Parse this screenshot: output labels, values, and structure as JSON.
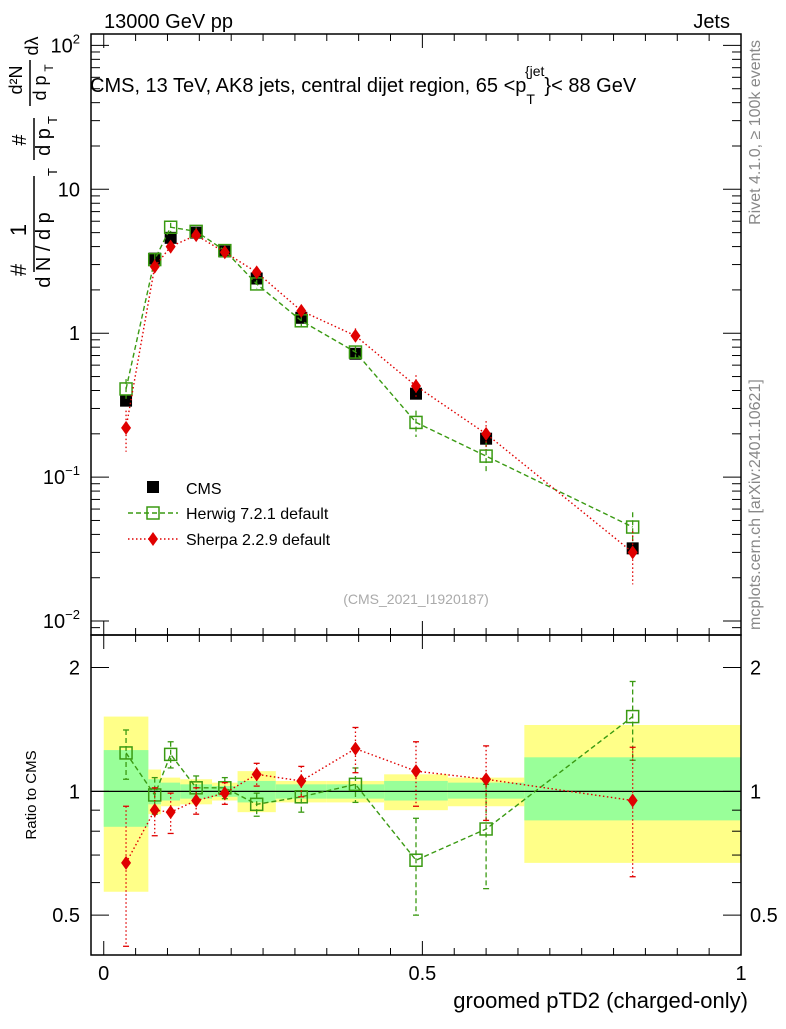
{
  "header": {
    "left": "13000 GeV pp",
    "right": "Jets"
  },
  "side_labels": {
    "rivet": "Rivet 4.1.0, ≥ 100k events",
    "mcplots": "mcplots.cern.ch [arXiv:2401.10621]"
  },
  "chart_data": {
    "type": "scatter",
    "title": "CMS, 13 TeV, AK8 jets, central dijet region, 65 <p_T^{jet}< 88 GeV",
    "title_parts": {
      "main": "CMS, 13 TeV, AK8 jets, central dijet region, 65 <p",
      "sub": "T",
      "sup": "{jet",
      "tail": "}< 88 GeV"
    },
    "ylabel_parts": {
      "num1": "#",
      "num2": "1",
      "den1": "d N / d p",
      "denT": "T",
      "frac2_num": "#",
      "frac2_den": "d p",
      "frac2_T": "T",
      "frac3_num": "d²N",
      "frac3_den": "d p",
      "frac3_T": "T",
      "dlambda": "dλ"
    },
    "xlabel": "groomed pTD2 (charged-only)",
    "ratio_ylabel": "Ratio to CMS",
    "analysis_label": "(CMS_2021_I1920187)",
    "xlim": [
      -0.02,
      1.0
    ],
    "ylim": [
      0.008,
      120
    ],
    "ratio_ylim": [
      0.4,
      2.4
    ],
    "xticks": [
      {
        "v": 0,
        "label": "0"
      },
      {
        "v": 0.5,
        "label": "0.5"
      },
      {
        "v": 1,
        "label": "1"
      }
    ],
    "yticks": [
      {
        "v": 0.01,
        "base": "10",
        "exp": "−2"
      },
      {
        "v": 0.1,
        "base": "10",
        "exp": "−1"
      },
      {
        "v": 1,
        "base": "1",
        "exp": ""
      },
      {
        "v": 10,
        "base": "10",
        "exp": ""
      },
      {
        "v": 100,
        "base": "10",
        "exp": "2"
      }
    ],
    "ratio_yticks": [
      {
        "v": 0.5,
        "label": "0.5"
      },
      {
        "v": 1,
        "label": "1"
      },
      {
        "v": 2,
        "label": "2"
      }
    ],
    "bins": [
      {
        "lo": 0.0,
        "hi": 0.07
      },
      {
        "lo": 0.07,
        "hi": 0.09
      },
      {
        "lo": 0.09,
        "hi": 0.12
      },
      {
        "lo": 0.12,
        "hi": 0.17
      },
      {
        "lo": 0.17,
        "hi": 0.21
      },
      {
        "lo": 0.21,
        "hi": 0.27
      },
      {
        "lo": 0.27,
        "hi": 0.35
      },
      {
        "lo": 0.35,
        "hi": 0.44
      },
      {
        "lo": 0.44,
        "hi": 0.54
      },
      {
        "lo": 0.54,
        "hi": 0.66
      },
      {
        "lo": 0.66,
        "hi": 1.0
      }
    ],
    "band_inner": [
      [
        0.82,
        1.26
      ],
      [
        0.93,
        1.07
      ],
      [
        0.95,
        1.05
      ],
      [
        0.96,
        1.04
      ],
      [
        0.97,
        1.03
      ],
      [
        0.94,
        1.06
      ],
      [
        0.96,
        1.04
      ],
      [
        0.96,
        1.04
      ],
      [
        0.95,
        1.06
      ],
      [
        0.96,
        1.05
      ],
      [
        0.85,
        1.21
      ]
    ],
    "band_outer": [
      [
        0.57,
        1.52
      ],
      [
        0.88,
        1.13
      ],
      [
        0.92,
        1.08
      ],
      [
        0.93,
        1.07
      ],
      [
        0.95,
        1.05
      ],
      [
        0.89,
        1.12
      ],
      [
        0.94,
        1.06
      ],
      [
        0.94,
        1.06
      ],
      [
        0.9,
        1.1
      ],
      [
        0.92,
        1.08
      ],
      [
        0.67,
        1.45
      ]
    ],
    "series": [
      {
        "name": "CMS",
        "color": "#000000",
        "marker": "square",
        "x": [
          0.035,
          0.08,
          0.105,
          0.145,
          0.19,
          0.24,
          0.31,
          0.395,
          0.49,
          0.6,
          0.83
        ],
        "y": [
          0.34,
          3.3,
          4.6,
          5.0,
          3.7,
          2.4,
          1.28,
          0.72,
          0.38,
          0.185,
          0.032
        ]
      },
      {
        "name": "Herwig 7.2.1 default",
        "color": "#3a9a12",
        "marker": "open-square",
        "line": "dashed",
        "x": [
          0.035,
          0.08,
          0.105,
          0.145,
          0.19,
          0.24,
          0.31,
          0.395,
          0.49,
          0.6,
          0.83
        ],
        "y": [
          0.41,
          3.25,
          5.45,
          5.1,
          3.75,
          2.2,
          1.22,
          0.74,
          0.24,
          0.14,
          0.045
        ],
        "yerr_lo": [
          0.06,
          0.3,
          0.4,
          0.35,
          0.2,
          0.15,
          0.1,
          0.07,
          0.05,
          0.035,
          0.01
        ],
        "yerr_hi": [
          0.07,
          0.3,
          0.4,
          0.35,
          0.2,
          0.15,
          0.1,
          0.07,
          0.05,
          0.035,
          0.012
        ],
        "ratio": [
          1.24,
          0.98,
          1.23,
          1.02,
          1.02,
          0.93,
          0.97,
          1.04,
          0.68,
          0.81,
          1.52
        ],
        "ratio_err": [
          0.17,
          0.1,
          0.09,
          0.07,
          0.06,
          0.06,
          0.08,
          0.1,
          0.18,
          0.23,
          0.33
        ]
      },
      {
        "name": "Sherpa 2.2.9 default",
        "color": "#e00000",
        "marker": "diamond",
        "line": "dotted",
        "x": [
          0.035,
          0.08,
          0.105,
          0.145,
          0.19,
          0.24,
          0.31,
          0.395,
          0.49,
          0.6,
          0.83
        ],
        "y": [
          0.22,
          2.9,
          4.0,
          4.8,
          3.65,
          2.65,
          1.43,
          0.96,
          0.43,
          0.2,
          0.03
        ],
        "yerr_lo": [
          0.07,
          0.35,
          0.4,
          0.35,
          0.22,
          0.18,
          0.12,
          0.12,
          0.08,
          0.045,
          0.012
        ],
        "yerr_hi": [
          0.07,
          0.35,
          0.4,
          0.35,
          0.22,
          0.18,
          0.12,
          0.12,
          0.08,
          0.045,
          0.012
        ],
        "ratio": [
          0.67,
          0.9,
          0.89,
          0.95,
          0.99,
          1.1,
          1.06,
          1.27,
          1.12,
          1.07,
          0.95
        ],
        "ratio_err": [
          0.25,
          0.12,
          0.1,
          0.07,
          0.06,
          0.07,
          0.09,
          0.16,
          0.2,
          0.22,
          0.33
        ]
      }
    ]
  }
}
